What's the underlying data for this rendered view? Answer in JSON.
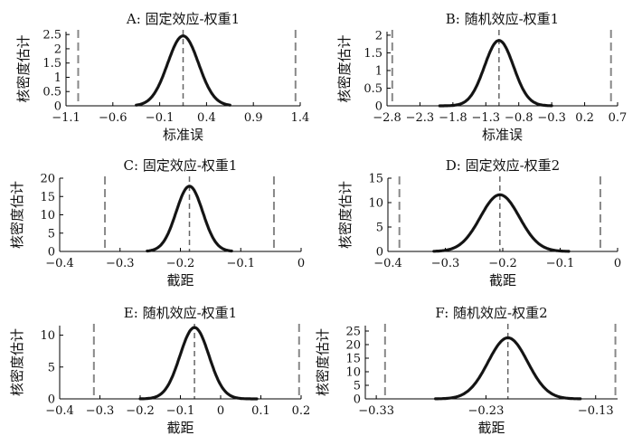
{
  "chart_data": [
    {
      "type": "line",
      "title": "A: 固定效应-权重1",
      "xlabel": "标准误",
      "ylabel": "核密度估计",
      "xlim": [
        -1.1,
        1.4
      ],
      "ylim": [
        0,
        2.6
      ],
      "xticks": [
        -1.1,
        -0.6,
        -0.1,
        0.4,
        0.9,
        1.4
      ],
      "xtick_labels": [
        "−1.1",
        "−0.6",
        "−0.1",
        "0.4",
        "0.9",
        "1.4"
      ],
      "yticks": [
        0,
        0.5,
        1,
        1.5,
        2,
        2.5
      ],
      "ytick_labels": [
        "0",
        "0.5",
        "1",
        "1.5",
        "2",
        "2.5"
      ],
      "density": {
        "mean": 0.15,
        "sd": 0.165,
        "peak": 2.45,
        "xmin": -0.35,
        "xmax": 0.65
      },
      "vlines": [
        -0.97,
        0.15,
        1.35
      ]
    },
    {
      "type": "line",
      "title": "B: 随机效应-权重1",
      "xlabel": "标准误",
      "ylabel": "核密度估计",
      "xlim": [
        -2.8,
        0.7
      ],
      "ylim": [
        0,
        2.1
      ],
      "xticks": [
        -2.8,
        -2.3,
        -1.8,
        -1.3,
        -0.8,
        -0.3,
        0.2,
        0.7
      ],
      "xtick_labels": [
        "−2.8",
        "−2.3",
        "−1.8",
        "−1.3",
        "−0.8",
        "−0.3",
        "0.2",
        "0.7"
      ],
      "yticks": [
        0,
        0.5,
        1,
        1.5,
        2
      ],
      "ytick_labels": [
        "0",
        "0.5",
        "1",
        "1.5",
        "2"
      ],
      "density": {
        "mean": -1.1,
        "sd": 0.22,
        "peak": 1.85,
        "xmin": -2.0,
        "xmax": -0.3
      },
      "vlines": [
        -2.72,
        -1.1,
        0.6
      ]
    },
    {
      "type": "line",
      "title": "C: 固定效应-权重1",
      "xlabel": "截距",
      "ylabel": "核密度估计",
      "xlim": [
        -0.4,
        0
      ],
      "ylim": [
        0,
        20
      ],
      "xticks": [
        -0.4,
        -0.3,
        -0.2,
        -0.1,
        0
      ],
      "xtick_labels": [
        "−0.4",
        "−0.3",
        "−0.2",
        "−0.1",
        "0"
      ],
      "yticks": [
        0,
        5,
        10,
        15,
        20
      ],
      "ytick_labels": [
        "0",
        "5",
        "10",
        "15",
        "20"
      ],
      "density": {
        "mean": -0.185,
        "sd": 0.022,
        "peak": 17.8,
        "xmin": -0.255,
        "xmax": -0.115
      },
      "vlines": [
        -0.325,
        -0.185,
        -0.045
      ]
    },
    {
      "type": "line",
      "title": "D: 固定效应-权重2",
      "xlabel": "截距",
      "ylabel": "核密度估计",
      "xlim": [
        -0.4,
        0
      ],
      "ylim": [
        0,
        15
      ],
      "xticks": [
        -0.4,
        -0.3,
        -0.2,
        -0.1,
        0
      ],
      "xtick_labels": [
        "−0.4",
        "−0.3",
        "−0.2",
        "−0.1",
        "0"
      ],
      "yticks": [
        0,
        5,
        10,
        15
      ],
      "ytick_labels": [
        "0",
        "5",
        "10",
        "15"
      ],
      "density": {
        "mean": -0.205,
        "sd": 0.034,
        "peak": 11.6,
        "xmin": -0.32,
        "xmax": -0.085
      },
      "vlines": [
        -0.38,
        -0.205,
        -0.03
      ]
    },
    {
      "type": "line",
      "title": "E: 随机效应-权重1",
      "xlabel": "截距",
      "ylabel": "核密度估计",
      "xlim": [
        -0.4,
        0.2
      ],
      "ylim": [
        0,
        11.5
      ],
      "xticks": [
        -0.4,
        -0.3,
        -0.2,
        -0.1,
        0,
        0.1,
        0.2
      ],
      "xtick_labels": [
        "−0.4",
        "−0.3",
        "−0.2",
        "−0.1",
        "0",
        "0.1",
        "0.2"
      ],
      "yticks": [
        0,
        5,
        10
      ],
      "ytick_labels": [
        "0",
        "5",
        "10"
      ],
      "density": {
        "mean": -0.065,
        "sd": 0.036,
        "peak": 11.2,
        "xmin": -0.2,
        "xmax": 0.09
      },
      "vlines": [
        -0.315,
        -0.065,
        0.195
      ]
    },
    {
      "type": "line",
      "title": "F: 随机效应-权重2",
      "xlabel": "截距",
      "ylabel": "核密度估计",
      "xlim": [
        -0.34,
        -0.11
      ],
      "ylim": [
        0,
        27
      ],
      "xticks": [
        -0.33,
        -0.23,
        -0.13
      ],
      "xtick_labels": [
        "−0.33",
        "−0.23",
        "−0.13"
      ],
      "yticks": [
        0,
        5,
        10,
        15,
        20,
        25
      ],
      "ytick_labels": [
        "0",
        "5",
        "10",
        "15",
        "20",
        "25"
      ],
      "density": {
        "mean": -0.21,
        "sd": 0.018,
        "peak": 22.5,
        "xmin": -0.276,
        "xmax": -0.144
      },
      "vlines": [
        -0.322,
        -0.21,
        -0.112
      ]
    }
  ]
}
